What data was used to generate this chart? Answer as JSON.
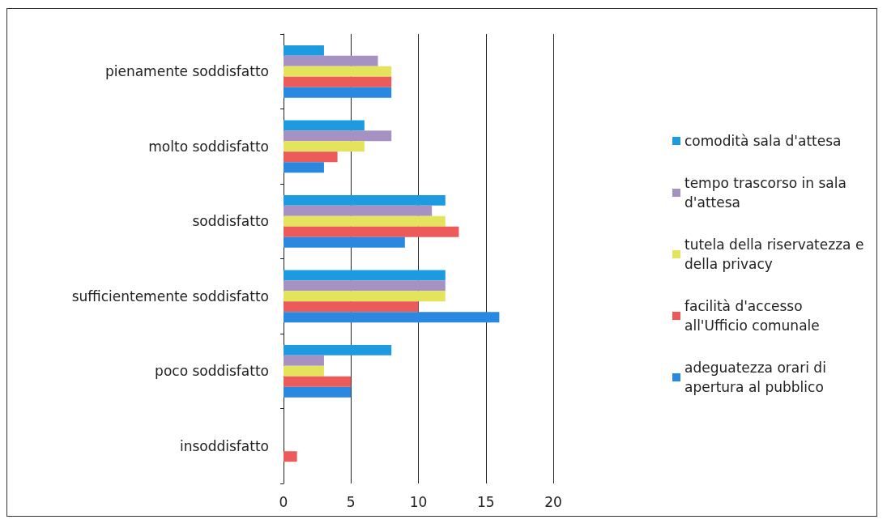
{
  "chart_data": {
    "type": "bar",
    "orientation": "horizontal",
    "categories": [
      "pienamente soddisfatto",
      "molto soddisfatto",
      "soddisfatto",
      "sufficientemente soddisfatto",
      "poco soddisfatto",
      "insoddisfatto"
    ],
    "series": [
      {
        "name": "comodità sala d'attesa",
        "color": "#1e9be0",
        "values": [
          3,
          6,
          12,
          12,
          8,
          0
        ]
      },
      {
        "name": "tempo trascorso in sala d'attesa",
        "color": "#a591c2",
        "values": [
          7,
          8,
          11,
          12,
          3,
          0
        ]
      },
      {
        "name": "tutela della riservatezza e della privacy",
        "color": "#e4e45c",
        "values": [
          8,
          6,
          12,
          12,
          3,
          0
        ]
      },
      {
        "name": "facilità d'accesso all'Ufficio comunale",
        "color": "#ec5a5a",
        "values": [
          8,
          4,
          13,
          10,
          5,
          1
        ]
      },
      {
        "name": "adeguatezza orari di apertura al pubblico",
        "color": "#2a88e0",
        "values": [
          8,
          3,
          9,
          16,
          5,
          0
        ]
      }
    ],
    "xlim": [
      0,
      20
    ],
    "xticks": [
      0,
      5,
      10,
      15,
      20
    ],
    "grid": "x",
    "legend": "right"
  }
}
